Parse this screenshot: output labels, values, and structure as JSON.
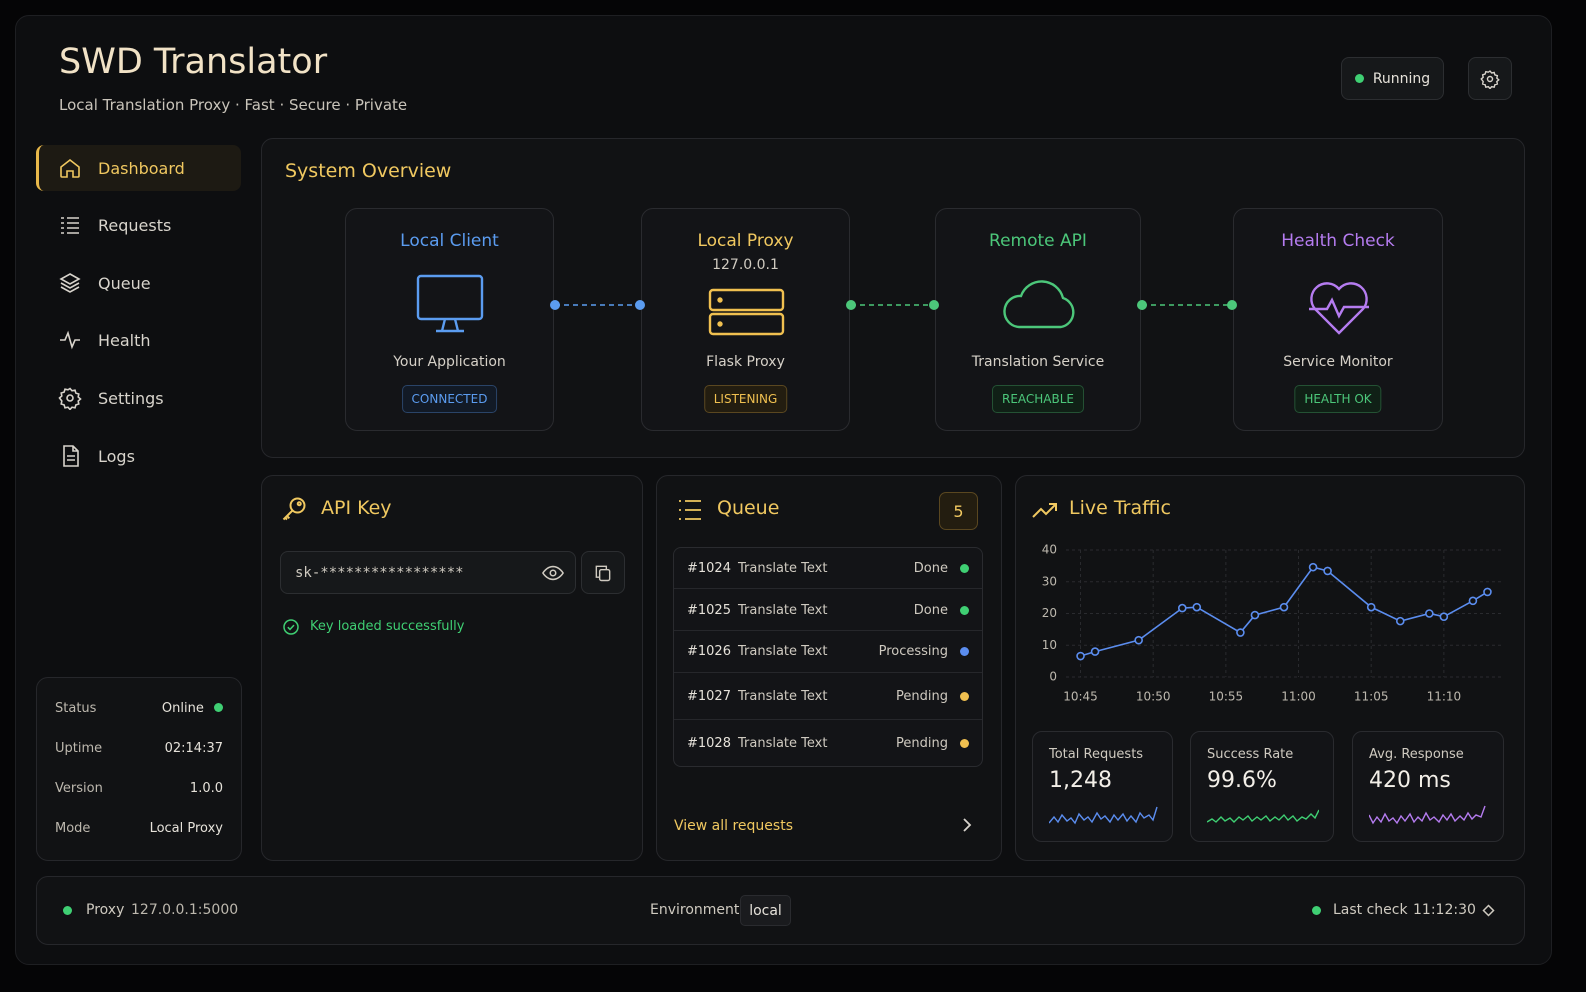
{
  "header": {
    "title": "SWD Translator",
    "subtitle": "Local Translation Proxy · Fast · Secure · Private",
    "status": "Running"
  },
  "nav": [
    "Dashboard",
    "Requests",
    "Queue",
    "Health",
    "Settings",
    "Logs"
  ],
  "info": [
    [
      "Status",
      "Online"
    ],
    [
      "Uptime",
      "02:14:37"
    ],
    [
      "Version",
      "1.0.0"
    ],
    [
      "Mode",
      "Local Proxy"
    ]
  ],
  "overview": {
    "title": "System Overview",
    "nodes": [
      {
        "title": "Local Client",
        "desc": "Your Application",
        "badge": "CONNECTED"
      },
      {
        "title": "Local Proxy",
        "address": "127.0.0.1",
        "desc": "Flask Proxy",
        "badge": "LISTENING"
      },
      {
        "title": "Remote API",
        "desc": "Translation Service",
        "badge": "REACHABLE"
      },
      {
        "title": "Health Check",
        "desc": "Service Monitor",
        "badge": "HEALTH OK"
      }
    ]
  },
  "api_key": {
    "title": "API Key",
    "value": "sk-*****************",
    "status": "Key loaded successfully"
  },
  "queue": {
    "title": "Queue",
    "count": "5",
    "items": [
      {
        "id": "#1024",
        "task": "Translate Text",
        "status": "Done"
      },
      {
        "id": "#1025",
        "task": "Translate Text",
        "status": "Done"
      },
      {
        "id": "#1026",
        "task": "Translate Text",
        "status": "Processing"
      },
      {
        "id": "#1027",
        "task": "Translate Text",
        "status": "Pending"
      },
      {
        "id": "#1028",
        "task": "Translate Text",
        "status": "Pending"
      }
    ],
    "link": "View all requests"
  },
  "chart_data": {
    "type": "line",
    "title": "Live Traffic",
    "x": [
      "10:45",
      "10:46",
      "10:49",
      "10:52",
      "10:53",
      "10:56",
      "10:57",
      "10:59",
      "11:01",
      "11:02",
      "11:05",
      "11:07",
      "11:09",
      "11:10",
      "11:12",
      "11:13"
    ],
    "values": [
      6.6,
      8,
      11.6,
      21.7,
      22,
      14,
      19.5,
      22,
      34.6,
      33.4,
      22,
      17.6,
      20,
      19,
      24,
      26.8
    ],
    "color": "#5b8def",
    "xlim": [
      "10:44",
      "11:14"
    ],
    "xticks": [
      "10:45",
      "10:50",
      "10:55",
      "11:00",
      "11:05",
      "11:10"
    ],
    "ylim": [
      0,
      40
    ],
    "yticks": [
      0,
      10,
      20,
      30,
      40
    ],
    "grid": true
  },
  "stats": [
    {
      "label": "Total Requests",
      "value": "1,248"
    },
    {
      "label": "Success Rate",
      "value": "99.6%"
    },
    {
      "label": "Avg. Response",
      "value": "420 ms"
    }
  ],
  "footer": {
    "proxy_label": "Proxy",
    "proxy": "127.0.0.1:5000",
    "env_label": "Environment",
    "env": "local",
    "check_label": "Last check",
    "check": "11:12:30"
  }
}
